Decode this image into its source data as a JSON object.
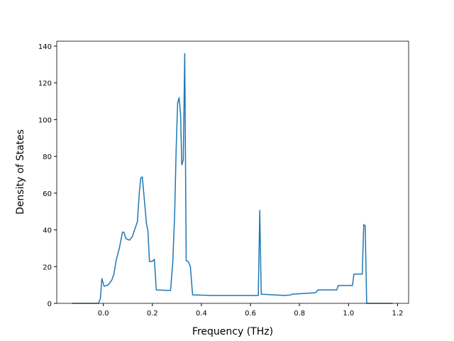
{
  "chart_data": {
    "type": "line",
    "x_label": "Frequency (THz)",
    "y_label": "Density of States",
    "x": [
      -0.127,
      -0.02,
      -0.012,
      -0.006,
      0.003,
      0.02,
      0.035,
      0.043,
      0.052,
      0.066,
      0.078,
      0.084,
      0.092,
      0.107,
      0.118,
      0.139,
      0.147,
      0.153,
      0.159,
      0.167,
      0.176,
      0.182,
      0.188,
      0.199,
      0.208,
      0.216,
      0.274,
      0.283,
      0.291,
      0.297,
      0.303,
      0.309,
      0.315,
      0.32,
      0.326,
      0.332,
      0.338,
      0.346,
      0.355,
      0.364,
      0.447,
      0.632,
      0.638,
      0.644,
      0.736,
      0.765,
      0.77,
      0.866,
      0.875,
      0.952,
      0.958,
      1.016,
      1.022,
      1.056,
      1.062,
      1.068,
      1.074,
      1.18
    ],
    "series": [
      {
        "color": "#1f77b4",
        "values": [
          0,
          0,
          2.7,
          13.5,
          9.3,
          10,
          12.8,
          15.9,
          23.2,
          30.5,
          38.7,
          38.7,
          35.2,
          34.4,
          36.3,
          44.5,
          60.7,
          68.4,
          68.8,
          56.8,
          43.3,
          39.4,
          22.8,
          22.8,
          24,
          7.3,
          7,
          22,
          49,
          84,
          109,
          112,
          103,
          75.4,
          78,
          136,
          23.2,
          22.8,
          20,
          4.6,
          4.3,
          4.3,
          50.6,
          5,
          4.3,
          4.6,
          5,
          5.8,
          7.3,
          7.3,
          9.7,
          9.7,
          15.9,
          15.9,
          42.9,
          42.2,
          0,
          0
        ]
      }
    ],
    "xlim": [
      -0.19,
      1.245
    ],
    "ylim": [
      0,
      142.7
    ],
    "xticks": [
      {
        "value": 0,
        "label": "0.0"
      },
      0.2,
      0.4,
      0.6,
      0.8,
      {
        "value": 1,
        "label": "1.0"
      },
      1.2
    ],
    "yticks": [
      0,
      20,
      40,
      60,
      80,
      100,
      120,
      140
    ]
  }
}
